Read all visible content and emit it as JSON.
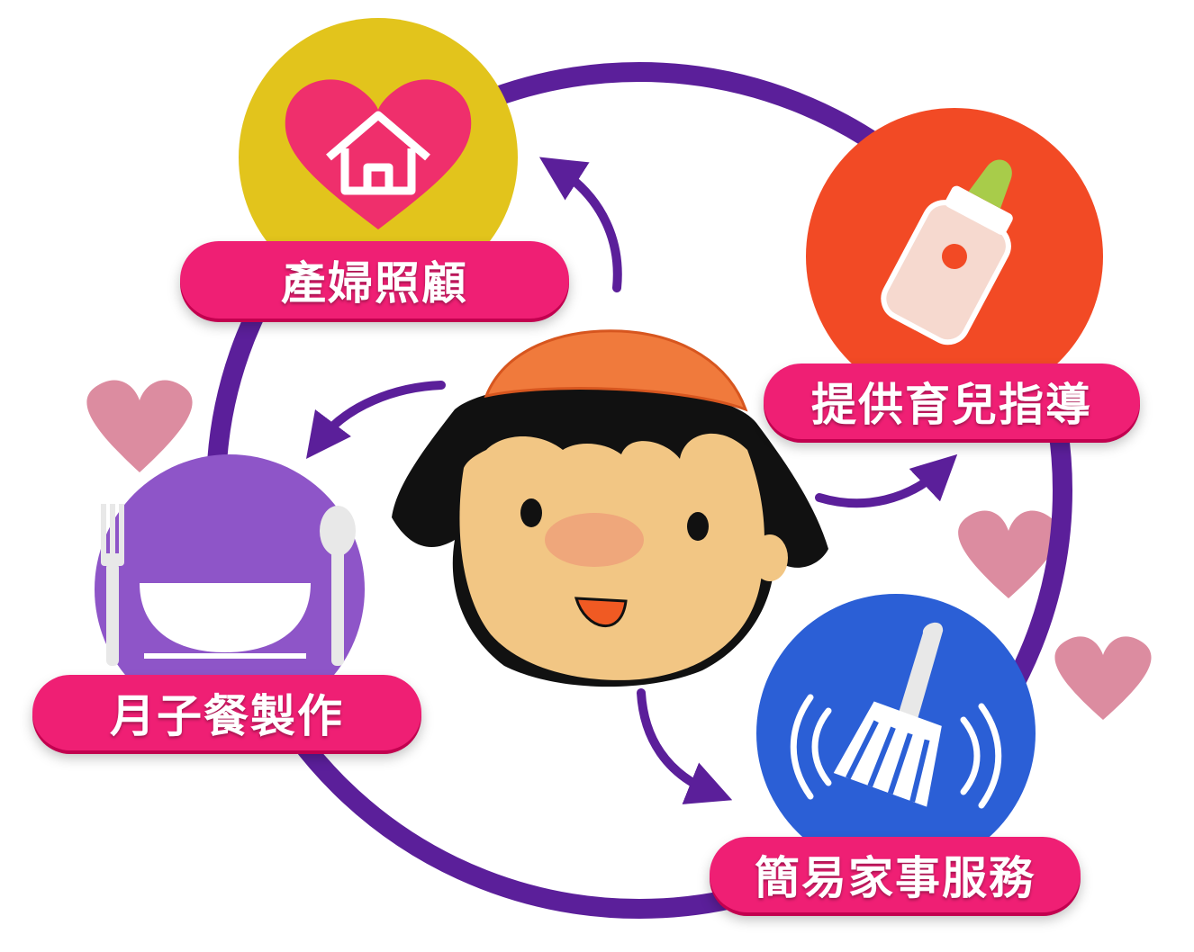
{
  "services": {
    "postpartum_care": "產婦照顧",
    "parenting_guidance": "提供育兒指導",
    "confinement_meals": "月子餐製作",
    "housework": "簡易家事服務"
  },
  "colors": {
    "ring": "#5b1f9a",
    "label_bg": "#ef1f74",
    "postpartum_circle": "#e2c41c",
    "parenting_circle": "#f24a25",
    "meals_circle": "#8e55c8",
    "housework_circle": "#2b5fd6",
    "hearts": "#d6788f",
    "hat": "#f07a3c",
    "hair": "#111111",
    "face": "#f2c684"
  }
}
